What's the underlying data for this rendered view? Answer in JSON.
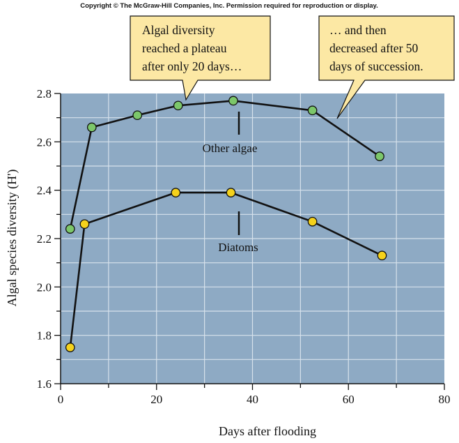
{
  "copyright": "Copyright © The McGraw-Hill Companies, Inc. Permission required for reproduction or display.",
  "colors": {
    "plot_background": "#8eaac4",
    "grid": "#d7e2ec",
    "line": "#111111",
    "other_algae_marker": "#7cc76a",
    "diatoms_marker": "#f5d21c",
    "callout_fill": "#fce8a4"
  },
  "callouts": [
    {
      "lines": [
        "Algal diversity",
        "reached a plateau",
        "after only 20 days…"
      ]
    },
    {
      "lines": [
        "… and then",
        "decreased after 50",
        "days of succession."
      ]
    }
  ],
  "chart_data": {
    "type": "line",
    "xlabel": "Days after flooding",
    "ylabel": "Algal species diversity (H')",
    "xlim": [
      0,
      80
    ],
    "ylim": [
      1.6,
      2.8
    ],
    "xticks": [
      "0",
      "20",
      "40",
      "60",
      "80"
    ],
    "yticks": [
      "1.6",
      "1.8",
      "2.0",
      "2.2",
      "2.4",
      "2.6",
      "2.8"
    ],
    "grid": true,
    "series": [
      {
        "name": "Other algae",
        "points": [
          [
            2,
            2.24
          ],
          [
            6.5,
            2.66
          ],
          [
            16,
            2.71
          ],
          [
            24.5,
            2.75
          ],
          [
            36,
            2.77
          ],
          [
            52.5,
            2.73
          ],
          [
            66.5,
            2.54
          ]
        ]
      },
      {
        "name": "Diatoms",
        "points": [
          [
            2,
            1.75
          ],
          [
            5,
            2.26
          ],
          [
            24,
            2.39
          ],
          [
            35.5,
            2.39
          ],
          [
            52.5,
            2.27
          ],
          [
            67,
            2.13
          ]
        ]
      }
    ]
  }
}
